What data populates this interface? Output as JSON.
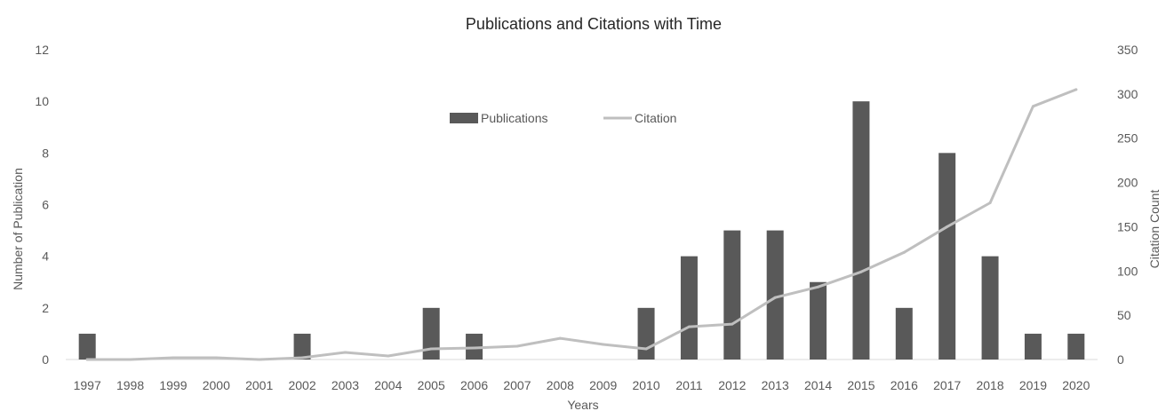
{
  "chart_data": {
    "type": "bar",
    "title": "Publications and Citations with Time",
    "xlabel": "Years",
    "ylabel": "Number of Publication",
    "y2label": "Citation Count",
    "categories": [
      "1997",
      "1998",
      "1999",
      "2000",
      "2001",
      "2002",
      "2003",
      "2004",
      "2005",
      "2006",
      "2007",
      "2008",
      "2009",
      "2010",
      "2011",
      "2012",
      "2013",
      "2014",
      "2015",
      "2016",
      "2017",
      "2018",
      "2019",
      "2020"
    ],
    "ylim": [
      0,
      12
    ],
    "yticks": [
      "0",
      "2",
      "4",
      "6",
      "8",
      "10",
      "12"
    ],
    "y2lim": [
      0,
      350
    ],
    "y2ticks": [
      "0",
      "50",
      "100",
      "150",
      "200",
      "250",
      "300",
      "350"
    ],
    "grid": false,
    "legend_position": "top-center",
    "series": [
      {
        "name": "Publications",
        "type": "bar",
        "axis": "left",
        "color": "#595959",
        "values": [
          1,
          0,
          0,
          0,
          0,
          1,
          0,
          0,
          2,
          1,
          0,
          0,
          0,
          2,
          4,
          5,
          5,
          3,
          10,
          2,
          8,
          4,
          1,
          1
        ]
      },
      {
        "name": "Citation",
        "type": "line",
        "axis": "right",
        "color": "#bfbfbf",
        "values": [
          0,
          0,
          2,
          2,
          0,
          2,
          8,
          4,
          12,
          13,
          15,
          24,
          17,
          12,
          37,
          40,
          70,
          82,
          99,
          121,
          150,
          177,
          286,
          305
        ]
      }
    ]
  }
}
